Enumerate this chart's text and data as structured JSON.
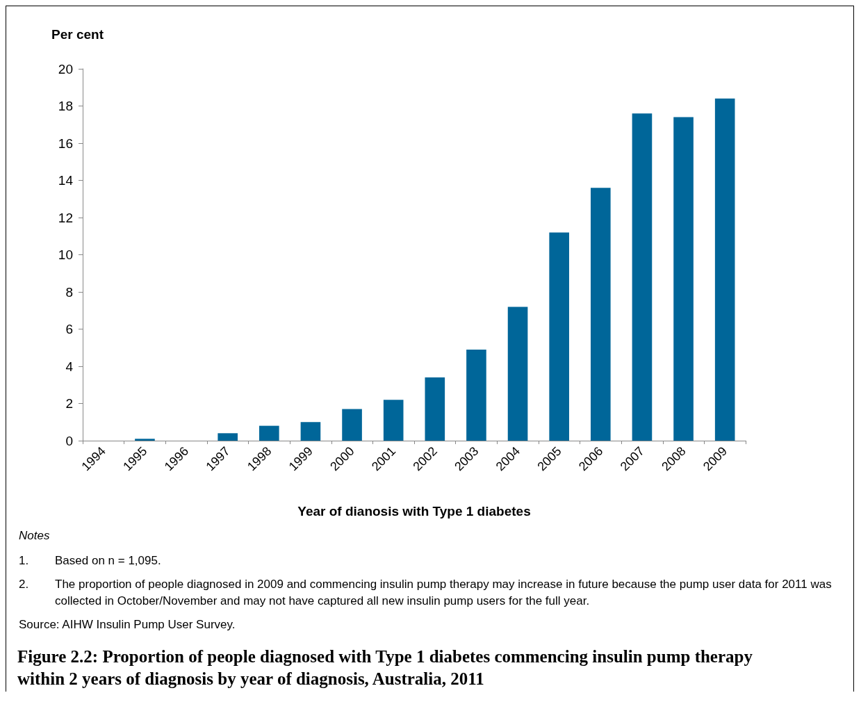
{
  "chart_data": {
    "type": "bar",
    "title": "Figure 2.2: Proportion of people diagnosed with Type 1 diabetes commencing insulin pump therapy within 2 years of diagnosis by year of diagnosis, Australia, 2011",
    "xlabel": "Year of dianosis with Type 1 diabetes",
    "ylabel": "Per cent",
    "categories": [
      "1994",
      "1995",
      "1996",
      "1997",
      "1998",
      "1999",
      "2000",
      "2001",
      "2002",
      "2003",
      "2004",
      "2005",
      "2006",
      "2007",
      "2008",
      "2009"
    ],
    "values": [
      0,
      0.1,
      0,
      0.4,
      0.8,
      1.0,
      1.7,
      2.2,
      3.4,
      4.9,
      7.2,
      11.2,
      13.6,
      17.6,
      17.4,
      18.4
    ],
    "color": "#006699",
    "ylim": [
      0,
      20
    ],
    "yticks": [
      0,
      2,
      4,
      6,
      8,
      10,
      12,
      14,
      16,
      18,
      20
    ],
    "grid": false,
    "annotations": [
      "Notes",
      "1.\tBased on n = 1,095.",
      "2.\tThe proportion of people diagnosed in 2009 and commencing insulin pump therapy may increase in future because the pump user data for 2011 was collected in October/November and may not have captured all new insulin pump users for the full year.",
      "Source: AIHW Insulin Pump User Survey."
    ]
  }
}
